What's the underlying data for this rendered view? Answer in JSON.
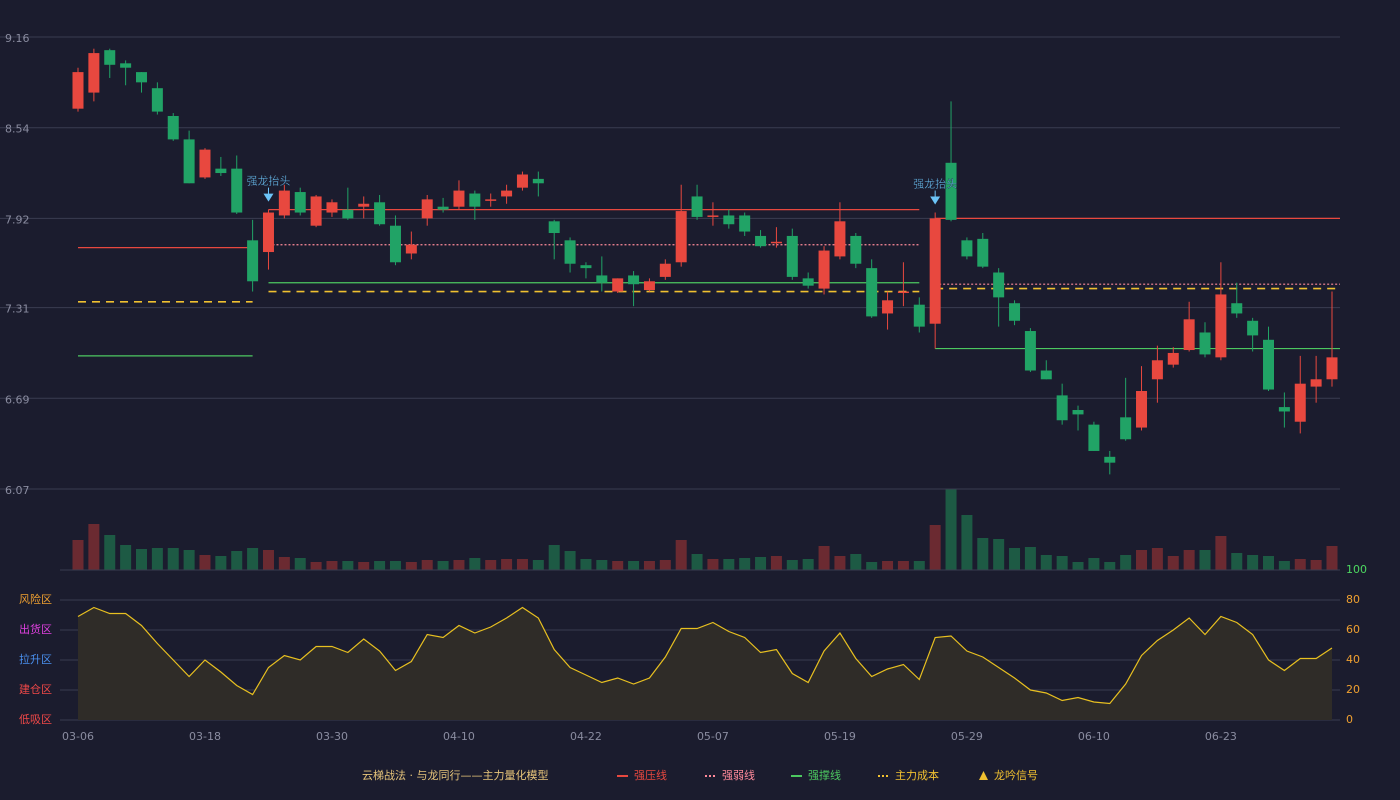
{
  "chart_data": [
    {
      "type": "candlestick",
      "categories": [
        "03-06",
        null,
        null,
        null,
        null,
        null,
        null,
        null,
        "03-18",
        null,
        null,
        null,
        null,
        null,
        null,
        null,
        "03-30",
        null,
        null,
        null,
        null,
        null,
        null,
        null,
        "04-10",
        null,
        null,
        null,
        null,
        null,
        null,
        null,
        "04-22",
        null,
        null,
        null,
        null,
        null,
        null,
        null,
        "05-07",
        null,
        null,
        null,
        null,
        null,
        null,
        null,
        "05-19",
        null,
        null,
        null,
        null,
        null,
        null,
        null,
        "05-29",
        null,
        null,
        null,
        null,
        null,
        null,
        null,
        "06-10",
        null,
        null,
        null,
        null,
        null,
        null,
        null,
        "06-23",
        null,
        null,
        null,
        null,
        null,
        null,
        null
      ],
      "open": [
        8.67,
        8.78,
        9.07,
        8.98,
        8.92,
        8.81,
        8.62,
        8.46,
        8.2,
        8.26,
        8.26,
        7.77,
        7.69,
        7.94,
        8.1,
        7.87,
        7.96,
        7.98,
        8.0,
        8.03,
        7.87,
        7.68,
        7.92,
        8.0,
        8.0,
        8.09,
        8.04,
        8.07,
        8.13,
        8.19,
        7.9,
        7.77,
        7.6,
        7.53,
        7.42,
        7.53,
        7.43,
        7.52,
        7.62,
        8.07,
        7.93,
        7.94,
        7.94,
        7.8,
        7.75,
        7.8,
        7.51,
        7.44,
        7.66,
        7.8,
        7.58,
        7.27,
        7.41,
        7.33,
        7.2,
        8.3,
        7.77,
        7.78,
        7.55,
        7.34,
        7.15,
        6.88,
        6.71,
        6.61,
        6.51,
        6.29,
        6.56,
        6.49,
        6.82,
        6.92,
        7.02,
        7.14,
        6.97,
        7.34,
        7.22,
        7.09,
        6.63,
        6.53,
        6.77,
        6.82
      ],
      "high": [
        8.95,
        9.08,
        9.08,
        9.0,
        8.92,
        8.85,
        8.64,
        8.52,
        8.4,
        8.34,
        8.35,
        7.91,
        7.98,
        8.15,
        8.13,
        8.08,
        8.05,
        8.13,
        8.07,
        8.08,
        7.94,
        7.83,
        8.08,
        8.06,
        8.18,
        8.11,
        8.09,
        8.15,
        8.24,
        8.24,
        7.91,
        7.79,
        7.62,
        7.66,
        7.51,
        7.56,
        7.51,
        7.64,
        8.15,
        8.15,
        8.03,
        7.98,
        7.96,
        7.84,
        7.86,
        7.85,
        7.55,
        7.73,
        8.03,
        7.82,
        7.64,
        7.42,
        7.62,
        7.38,
        7.96,
        8.72,
        7.79,
        7.82,
        7.58,
        7.36,
        7.17,
        6.95,
        6.79,
        6.64,
        6.53,
        6.33,
        6.83,
        6.91,
        7.05,
        7.04,
        7.35,
        7.21,
        7.62,
        7.48,
        7.24,
        7.18,
        6.73,
        6.98,
        6.98,
        7.42
      ],
      "low": [
        8.65,
        8.72,
        8.88,
        8.83,
        8.78,
        8.63,
        8.45,
        8.16,
        8.19,
        8.21,
        7.95,
        7.42,
        7.57,
        7.92,
        7.94,
        7.86,
        7.93,
        7.91,
        7.92,
        7.87,
        7.6,
        7.64,
        7.87,
        7.96,
        7.98,
        7.91,
        8.0,
        8.02,
        8.11,
        8.07,
        7.64,
        7.55,
        7.51,
        7.42,
        7.41,
        7.32,
        7.42,
        7.5,
        7.59,
        7.91,
        7.87,
        7.85,
        7.8,
        7.72,
        7.72,
        7.5,
        7.44,
        7.4,
        7.64,
        7.58,
        7.24,
        7.16,
        7.32,
        7.14,
        7.03,
        7.9,
        7.64,
        7.58,
        7.18,
        7.19,
        6.87,
        6.82,
        6.51,
        6.47,
        6.33,
        6.17,
        6.4,
        6.47,
        6.66,
        6.9,
        7.01,
        6.97,
        6.95,
        7.24,
        7.01,
        6.74,
        6.49,
        6.45,
        6.66,
        6.77
      ],
      "close": [
        8.92,
        9.05,
        8.97,
        8.95,
        8.85,
        8.65,
        8.46,
        8.16,
        8.39,
        8.23,
        7.96,
        7.49,
        7.96,
        8.11,
        7.96,
        8.07,
        8.03,
        7.92,
        8.02,
        7.88,
        7.62,
        7.74,
        8.05,
        7.98,
        8.11,
        8.0,
        8.05,
        8.11,
        8.22,
        8.16,
        7.82,
        7.61,
        7.58,
        7.48,
        7.51,
        7.47,
        7.49,
        7.61,
        7.97,
        7.93,
        7.94,
        7.88,
        7.83,
        7.73,
        7.76,
        7.52,
        7.46,
        7.7,
        7.9,
        7.61,
        7.25,
        7.36,
        7.42,
        7.18,
        7.92,
        7.91,
        7.66,
        7.59,
        7.38,
        7.22,
        6.88,
        6.82,
        6.54,
        6.58,
        6.33,
        6.25,
        6.41,
        6.74,
        6.95,
        7.0,
        7.23,
        6.99,
        7.4,
        7.27,
        7.12,
        6.75,
        6.6,
        6.79,
        6.82,
        6.97
      ],
      "up_color": "#e8483f",
      "down_color": "#21a366",
      "ylim": [
        6.07,
        9.16
      ],
      "yticks": [
        6.07,
        6.69,
        7.31,
        7.92,
        8.54,
        9.16
      ],
      "grid": true,
      "levels": [
        {
          "name": "强压线",
          "color": "#e8483f",
          "style": "solid",
          "segments": [
            {
              "start": 0,
              "end": 11,
              "value": 7.72
            },
            {
              "start": 12,
              "end": 53,
              "value": 7.98
            },
            {
              "start": 54,
              "end": 79,
              "value": 7.92
            }
          ]
        },
        {
          "name": "强弱线",
          "color": "#ff8a9a",
          "style": "dotted",
          "segments": [
            {
              "start": 12,
              "end": 53,
              "value": 7.74
            },
            {
              "start": 54,
              "end": 79,
              "value": 7.47
            }
          ]
        },
        {
          "name": "强撑线",
          "color": "#4cc860",
          "style": "solid",
          "segments": [
            {
              "start": 0,
              "end": 11,
              "value": 6.98
            },
            {
              "start": 12,
              "end": 53,
              "value": 7.48
            },
            {
              "start": 54,
              "end": 79,
              "value": 7.03
            }
          ]
        },
        {
          "name": "主力成本",
          "color": "#f0c030",
          "style": "dashed",
          "segments": [
            {
              "start": 0,
              "end": 11,
              "value": 7.35
            },
            {
              "start": 12,
              "end": 53,
              "value": 7.42
            },
            {
              "start": 54,
              "end": 79,
              "value": 7.44
            }
          ]
        }
      ],
      "annotations": [
        {
          "text": "强龙抬头",
          "index": 12
        },
        {
          "text": "强龙抬头",
          "index": 54
        }
      ],
      "annotation_color": "#6cc4f8",
      "legend_title": "云梯战法 · 与龙同行——主力量化模型",
      "signal": {
        "name": "龙吟信号",
        "color": "#f0c030"
      }
    },
    {
      "type": "bar",
      "values": [
        30,
        46,
        35,
        25,
        21,
        22,
        22,
        20,
        15,
        14,
        19,
        22,
        20,
        13,
        12,
        8,
        9,
        9,
        8,
        9,
        9,
        8,
        10,
        9,
        10,
        12,
        10,
        11,
        11,
        10,
        25,
        19,
        11,
        10,
        9,
        9,
        9,
        10,
        30,
        16,
        11,
        11,
        12,
        13,
        14,
        10,
        11,
        24,
        14,
        16,
        8,
        9,
        9,
        9,
        45,
        81,
        55,
        32,
        31,
        22,
        23,
        15,
        14,
        8,
        12,
        8,
        15,
        20,
        22,
        14,
        20,
        20,
        34,
        17,
        15,
        14,
        9,
        11,
        10,
        24
      ],
      "ylim": [
        0,
        81
      ],
      "up_color": "#6b2a31",
      "down_color": "#1d5a44"
    },
    {
      "type": "line",
      "values": [
        69,
        75,
        71,
        71,
        63,
        51,
        40,
        29,
        40,
        32,
        23,
        17,
        35,
        43,
        40,
        49,
        49,
        45,
        54,
        46,
        33,
        39,
        57,
        55,
        63,
        58,
        62,
        68,
        75,
        68,
        47,
        35,
        30,
        25,
        28,
        24,
        28,
        42,
        61,
        61,
        65,
        59,
        55,
        45,
        47,
        31,
        25,
        46,
        58,
        41,
        29,
        34,
        37,
        27,
        55,
        56,
        46,
        42,
        35,
        28,
        20,
        18,
        13,
        15,
        12,
        11,
        24,
        43,
        53,
        60,
        68,
        57,
        69,
        65,
        57,
        40,
        33,
        41,
        41,
        48
      ],
      "color": "#e8c020",
      "fill": "#2f2c28",
      "ylim": [
        0,
        100
      ],
      "yticks": [
        0,
        20,
        40,
        60,
        80,
        100
      ],
      "grid": true,
      "zones": [
        {
          "label": "风险区",
          "value": 80,
          "color": "#f0a030"
        },
        {
          "label": "出货区",
          "value": 60,
          "color": "#e040e0"
        },
        {
          "label": "拉升区",
          "value": 40,
          "color": "#4a90f0"
        },
        {
          "label": "建仓区",
          "value": 20,
          "color": "#f04848"
        },
        {
          "label": "低吸区",
          "value": 0,
          "color": "#f04848"
        }
      ]
    }
  ]
}
